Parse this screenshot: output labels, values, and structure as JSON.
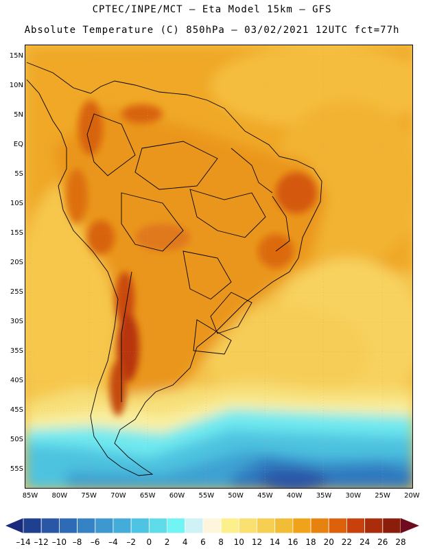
{
  "header": {
    "line1": "CPTEC/INPE/MCT –  Eta Model 15km – GFS",
    "line2": "Absolute Temperature (C) 850hPa – 03/02/2021 12UTC fct=77h"
  },
  "map": {
    "variable": "Absolute Temperature",
    "units": "C",
    "level": "850hPa",
    "model": "Eta Model 15km – GFS",
    "run": "03/02/2021 12UTC",
    "forecast": "fct=77h",
    "lat_labels": [
      "15N",
      "10N",
      "5N",
      "EQ",
      "5S",
      "10S",
      "15S",
      "20S",
      "25S",
      "30S",
      "35S",
      "40S",
      "45S",
      "50S",
      "55S"
    ],
    "lon_labels": [
      "85W",
      "80W",
      "75W",
      "70W",
      "65W",
      "60W",
      "55W",
      "50W",
      "45W",
      "40W",
      "35W",
      "30W",
      "25W",
      "20W"
    ]
  },
  "colorbar": {
    "labels": [
      "–14",
      "–12",
      "–10",
      "–8",
      "–6",
      "–4",
      "–2",
      "0",
      "2",
      "4",
      "6",
      "8",
      "10",
      "12",
      "14",
      "16",
      "18",
      "20",
      "22",
      "24",
      "26",
      "28"
    ],
    "colors": [
      "#1f3f8f",
      "#2a56a6",
      "#2e6bb6",
      "#3582c4",
      "#3c98cf",
      "#44acd8",
      "#4fc4e2",
      "#5fdcea",
      "#73f4f4",
      "#cff2f6",
      "#fdf6dc",
      "#fbf08c",
      "#f9e070",
      "#f6cf52",
      "#f2bd36",
      "#f0a21a",
      "#e6820f",
      "#dd600b",
      "#c8400b",
      "#a92c0b",
      "#8a1e0b"
    ]
  }
}
